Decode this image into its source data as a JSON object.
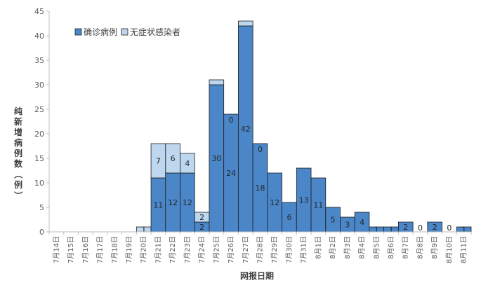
{
  "chart_data": {
    "type": "bar",
    "stacked": true,
    "title": "",
    "xlabel": "网报日期",
    "ylabel": "纯新增病例数（例）",
    "ylim": [
      0,
      45
    ],
    "yticks": [
      0,
      5,
      10,
      15,
      20,
      25,
      30,
      35,
      40,
      45
    ],
    "grid": false,
    "legend_position": "top-left",
    "categories": [
      "7月14日",
      "7月15日",
      "7月16日",
      "7月17日",
      "7月18日",
      "7月19日",
      "7月20日",
      "7月21日",
      "7月22日",
      "7月23日",
      "7月24日",
      "7月25日",
      "7月26日",
      "7月27日",
      "7月28日",
      "7月29日",
      "7月30日",
      "7月31日",
      "8月1日",
      "8月2日",
      "8月3日",
      "8月4日",
      "8月5日",
      "8月6日",
      "8月7日",
      "8月8日",
      "8月9日",
      "8月10日",
      "8月11日"
    ],
    "series": [
      {
        "name": "确诊病例",
        "color": "#4a86c8",
        "values": [
          0,
          0,
          0,
          0,
          0,
          0,
          0,
          11,
          12,
          12,
          2,
          30,
          24,
          42,
          18,
          12,
          6,
          13,
          11,
          5,
          3,
          4,
          1,
          1,
          2,
          0,
          2,
          0,
          1
        ],
        "labels": [
          "",
          "",
          "",
          "",
          "",
          "",
          "",
          "11",
          "12",
          "12",
          "2",
          "30",
          "24",
          "42",
          "18",
          "12",
          "6",
          "13",
          "11",
          "5",
          "3",
          "4",
          "1",
          "1",
          "2",
          "0",
          "2",
          "0",
          "1"
        ]
      },
      {
        "name": "无症状感染者",
        "color": "#bdd7ee",
        "values": [
          0,
          0,
          0,
          0,
          0,
          0,
          1,
          7,
          6,
          4,
          2,
          1,
          0,
          1,
          0,
          0,
          0,
          0,
          0,
          0,
          0,
          0,
          0,
          0,
          0,
          0,
          0,
          0,
          0
        ],
        "labels": [
          "",
          "",
          "",
          "",
          "",
          "",
          "1",
          "7",
          "6",
          "4",
          "2",
          "",
          "0",
          "",
          "0",
          "",
          "",
          "",
          "",
          "",
          "",
          "",
          "",
          "",
          "",
          "",
          "",
          "",
          ""
        ]
      }
    ]
  }
}
